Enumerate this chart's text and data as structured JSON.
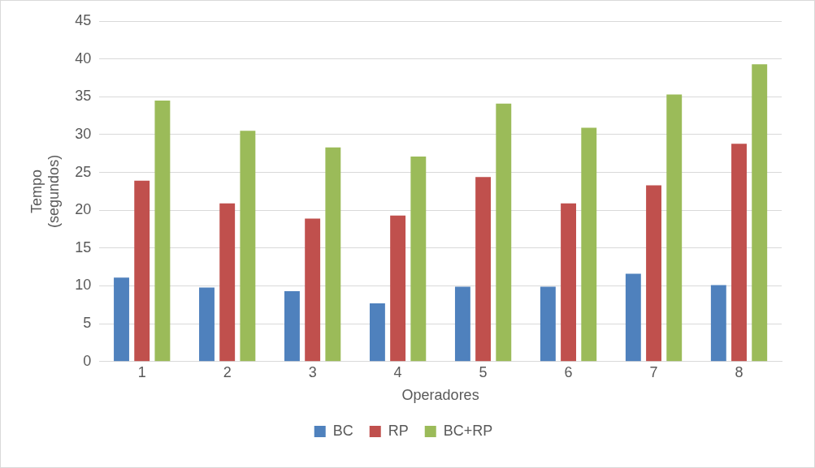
{
  "chart_data": {
    "type": "bar",
    "xlabel": "Operadores",
    "ylabel": "Tempo\n(segundos)",
    "categories": [
      "1",
      "2",
      "3",
      "4",
      "5",
      "6",
      "7",
      "8"
    ],
    "series": [
      {
        "name": "BC",
        "color": "#4f81bd",
        "values": [
          11.1,
          9.8,
          9.3,
          7.7,
          9.9,
          9.9,
          11.6,
          10.1
        ]
      },
      {
        "name": "RP",
        "color": "#c0504d",
        "values": [
          23.9,
          20.9,
          18.9,
          19.3,
          24.4,
          20.9,
          23.3,
          28.8
        ]
      },
      {
        "name": "BC+RP",
        "color": "#9bbb59",
        "values": [
          34.5,
          30.5,
          28.3,
          27.1,
          34.1,
          30.9,
          35.3,
          39.3
        ]
      }
    ],
    "ylim": [
      0,
      45
    ],
    "yticks": [
      0,
      5,
      10,
      15,
      20,
      25,
      30,
      35,
      40,
      45
    ],
    "grid": "y",
    "legend": "bottom"
  }
}
